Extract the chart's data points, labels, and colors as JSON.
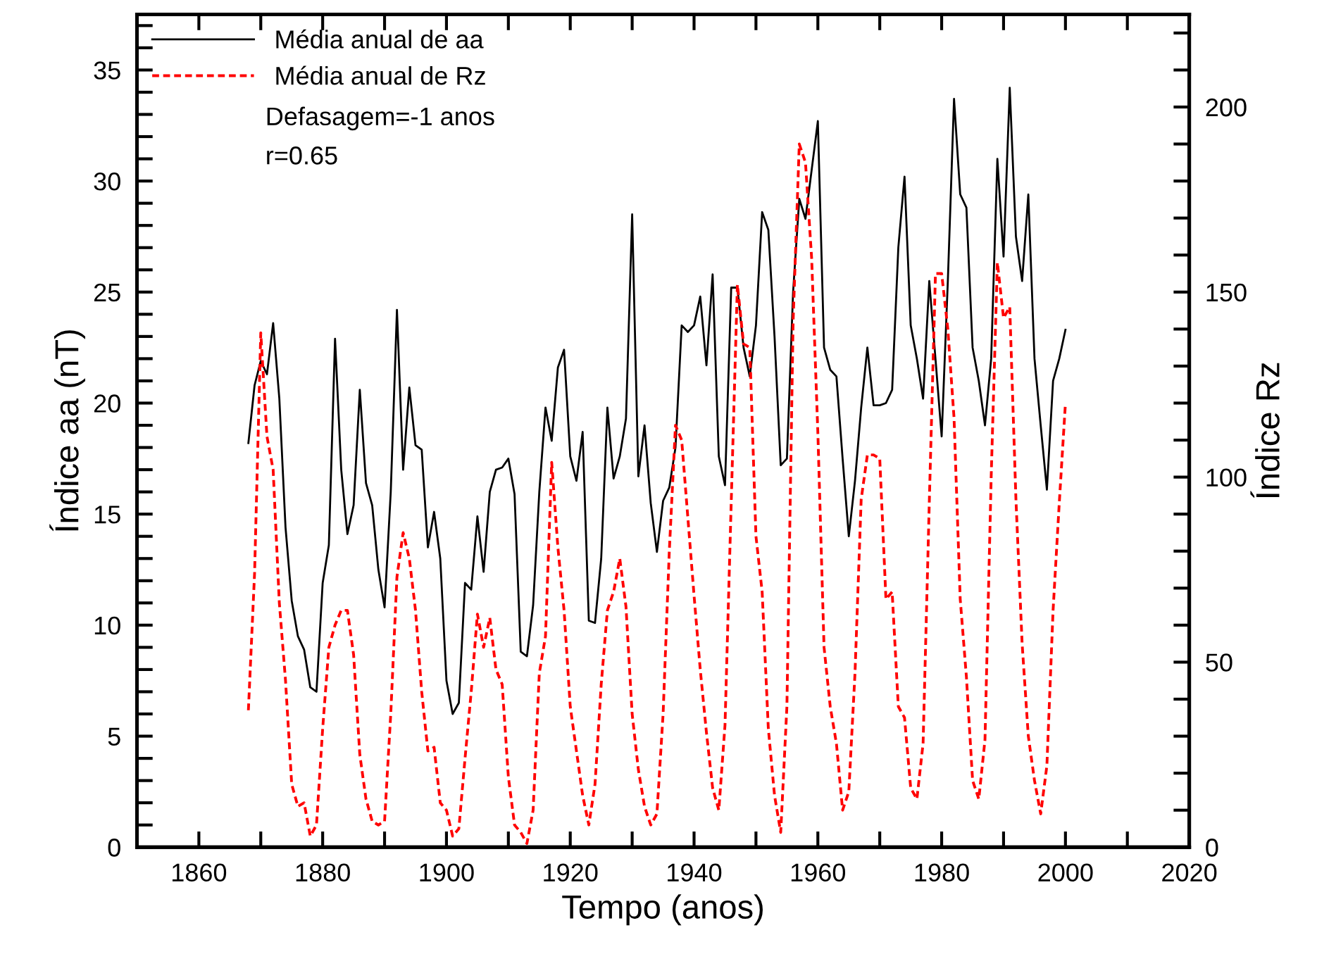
{
  "chart_data": {
    "type": "line",
    "xlabel": "Tempo (anos)",
    "ylabel": "Índice aa (nT)",
    "y2label": "Índice Rz",
    "annotations": [
      "Defasagem=-1 anos",
      "r=0.65"
    ],
    "xlim": [
      1850,
      2020
    ],
    "xticks": [
      1860,
      {
        "value": 1870,
        "label": null
      },
      1880,
      {
        "value": 1890,
        "label": null
      },
      1900,
      {
        "value": 1910,
        "label": null
      },
      1920,
      {
        "value": 1930,
        "label": null
      },
      1940,
      {
        "value": 1950,
        "label": null
      },
      1960,
      {
        "value": 1970,
        "label": null
      },
      1980,
      {
        "value": 1990,
        "label": null
      },
      2000,
      {
        "value": 2010,
        "label": null
      },
      2020
    ],
    "ylim": [
      0,
      37.5
    ],
    "yticks": [
      0,
      {
        "value": 1,
        "label": null
      },
      {
        "value": 2,
        "label": null
      },
      {
        "value": 3,
        "label": null
      },
      {
        "value": 4,
        "label": null
      },
      5,
      {
        "value": 6,
        "label": null
      },
      {
        "value": 7,
        "label": null
      },
      {
        "value": 8,
        "label": null
      },
      {
        "value": 9,
        "label": null
      },
      10,
      {
        "value": 11,
        "label": null
      },
      {
        "value": 12,
        "label": null
      },
      {
        "value": 13,
        "label": null
      },
      {
        "value": 14,
        "label": null
      },
      15,
      {
        "value": 16,
        "label": null
      },
      {
        "value": 17,
        "label": null
      },
      {
        "value": 18,
        "label": null
      },
      {
        "value": 19,
        "label": null
      },
      20,
      {
        "value": 21,
        "label": null
      },
      {
        "value": 22,
        "label": null
      },
      {
        "value": 23,
        "label": null
      },
      {
        "value": 24,
        "label": null
      },
      25,
      {
        "value": 26,
        "label": null
      },
      {
        "value": 27,
        "label": null
      },
      {
        "value": 28,
        "label": null
      },
      {
        "value": 29,
        "label": null
      },
      30,
      {
        "value": 31,
        "label": null
      },
      {
        "value": 32,
        "label": null
      },
      {
        "value": 33,
        "label": null
      },
      {
        "value": 34,
        "label": null
      },
      35,
      {
        "value": 36,
        "label": null
      },
      {
        "value": 37,
        "label": null
      }
    ],
    "y2lim": [
      0,
      225
    ],
    "y2ticks": [
      0,
      {
        "value": 10,
        "label": null
      },
      {
        "value": 20,
        "label": null
      },
      {
        "value": 30,
        "label": null
      },
      {
        "value": 40,
        "label": null
      },
      50,
      {
        "value": 60,
        "label": null
      },
      {
        "value": 70,
        "label": null
      },
      {
        "value": 80,
        "label": null
      },
      {
        "value": 90,
        "label": null
      },
      100,
      {
        "value": 110,
        "label": null
      },
      {
        "value": 120,
        "label": null
      },
      {
        "value": 130,
        "label": null
      },
      {
        "value": 140,
        "label": null
      },
      150,
      {
        "value": 160,
        "label": null
      },
      {
        "value": 170,
        "label": null
      },
      {
        "value": 180,
        "label": null
      },
      {
        "value": 190,
        "label": null
      },
      200,
      {
        "value": 210,
        "label": null
      },
      {
        "value": 220,
        "label": null
      }
    ],
    "x": [
      1868,
      1869,
      1870,
      1871,
      1872,
      1873,
      1874,
      1875,
      1876,
      1877,
      1878,
      1879,
      1880,
      1881,
      1882,
      1883,
      1884,
      1885,
      1886,
      1887,
      1888,
      1889,
      1890,
      1891,
      1892,
      1893,
      1894,
      1895,
      1896,
      1897,
      1898,
      1899,
      1900,
      1901,
      1902,
      1903,
      1904,
      1905,
      1906,
      1907,
      1908,
      1909,
      1910,
      1911,
      1912,
      1913,
      1914,
      1915,
      1916,
      1917,
      1918,
      1919,
      1920,
      1921,
      1922,
      1923,
      1924,
      1925,
      1926,
      1927,
      1928,
      1929,
      1930,
      1931,
      1932,
      1933,
      1934,
      1935,
      1936,
      1937,
      1938,
      1939,
      1940,
      1941,
      1942,
      1943,
      1944,
      1945,
      1946,
      1947,
      1948,
      1949,
      1950,
      1951,
      1952,
      1953,
      1954,
      1955,
      1956,
      1957,
      1958,
      1959,
      1960,
      1961,
      1962,
      1963,
      1964,
      1965,
      1966,
      1967,
      1968,
      1969,
      1970,
      1971,
      1972,
      1973,
      1974,
      1975,
      1976,
      1977,
      1978,
      1979,
      1980,
      1981,
      1982,
      1983,
      1984,
      1985,
      1986,
      1987,
      1988,
      1989,
      1990,
      1991,
      1992,
      1993,
      1994,
      1995,
      1996,
      1997,
      1998,
      1999,
      2000
    ],
    "legend": "top left",
    "series": [
      {
        "name": "Média anual de aa",
        "color": "#000000",
        "line_style": "solid",
        "values": [
          18.2,
          20.8,
          21.9,
          21.3,
          23.6,
          20.2,
          14.4,
          11.1,
          9.5,
          8.9,
          7.2,
          7.0,
          11.9,
          13.6,
          22.9,
          17.0,
          14.1,
          15.4,
          20.6,
          16.4,
          15.4,
          12.5,
          10.8,
          16.0,
          24.2,
          17.0,
          20.7,
          18.1,
          17.9,
          13.5,
          15.1,
          13.0,
          7.5,
          6.0,
          6.5,
          11.9,
          11.6,
          14.9,
          12.4,
          16.0,
          17.0,
          17.1,
          17.5,
          15.9,
          8.8,
          8.6,
          10.9,
          16.0,
          19.8,
          18.3,
          21.6,
          22.4,
          17.6,
          16.5,
          18.7,
          10.2,
          10.1,
          13.0,
          19.8,
          16.6,
          17.6,
          19.3,
          28.5,
          16.7,
          19.0,
          15.5,
          13.3,
          15.6,
          16.2,
          18.0,
          23.5,
          23.2,
          23.5,
          24.8,
          21.7,
          25.8,
          17.6,
          16.3,
          25.2,
          25.2,
          22.5,
          21.2,
          23.5,
          28.6,
          27.8,
          23.0,
          17.2,
          17.5,
          25.0,
          29.2,
          28.3,
          30.5,
          32.7,
          22.5,
          21.5,
          21.2,
          17.5,
          14.0,
          16.5,
          19.8,
          22.5,
          19.9,
          19.9,
          20.0,
          20.6,
          27.0,
          30.2,
          23.5,
          22.0,
          20.2,
          25.5,
          22.0,
          18.5,
          25.5,
          33.7,
          29.4,
          28.8,
          22.5,
          21.0,
          19.0,
          22.0,
          31.0,
          26.6,
          34.2,
          27.5,
          25.5,
          29.4,
          22.0,
          19.0,
          16.1,
          21.0,
          22.0,
          23.3
        ]
      },
      {
        "name": "Média anual de Rz",
        "color": "#ff0000",
        "line_style": "dashed",
        "axis": "y2",
        "values": [
          37,
          74,
          139,
          111,
          102,
          66,
          45,
          17,
          11,
          12,
          3,
          6,
          32,
          54,
          60,
          64,
          64,
          52,
          25,
          13,
          7,
          6,
          7,
          36,
          73,
          85,
          78,
          64,
          42,
          26,
          27,
          12,
          10,
          3,
          5,
          24,
          42,
          63,
          54,
          62,
          48,
          44,
          19,
          6,
          4,
          1,
          10,
          47,
          57,
          104,
          81,
          64,
          38,
          26,
          14,
          6,
          17,
          44,
          64,
          69,
          78,
          65,
          36,
          21,
          11,
          6,
          9,
          36,
          80,
          114,
          110,
          89,
          68,
          48,
          31,
          16,
          10,
          33,
          93,
          152,
          136,
          135,
          84,
          69,
          32,
          14,
          4,
          38,
          142,
          190,
          185,
          159,
          112,
          54,
          38,
          28,
          10,
          15,
          47,
          94,
          106,
          106,
          105,
          67,
          69,
          38,
          35,
          16,
          13,
          28,
          93,
          155,
          155,
          140,
          116,
          67,
          46,
          18,
          13,
          29,
          100,
          158,
          143,
          146,
          94,
          55,
          30,
          18,
          9,
          22,
          64,
          93,
          120
        ]
      }
    ]
  }
}
